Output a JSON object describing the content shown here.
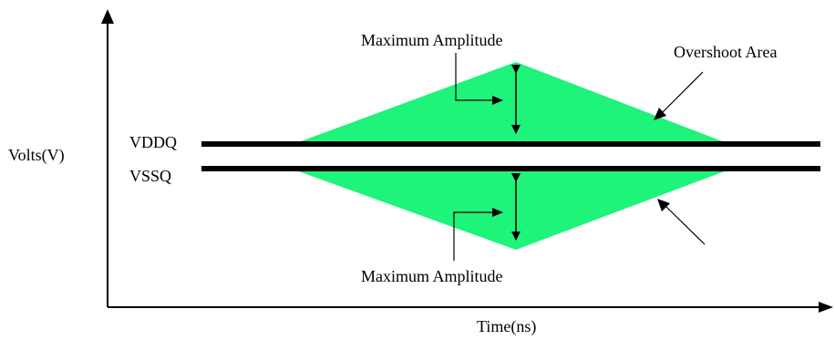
{
  "diagram": {
    "y_axis_label": "Volts(V)",
    "x_axis_label": "Time(ns)",
    "rail_top_label": "VDDQ",
    "rail_bottom_label": "VSSQ",
    "amplitude_top_label": "Maximum Amplitude",
    "amplitude_bottom_label": "Maximum Amplitude",
    "area_label": "Overshoot Area",
    "colors": {
      "area_fill": "#1ef37a",
      "line": "#000000",
      "background": "#ffffff"
    }
  }
}
